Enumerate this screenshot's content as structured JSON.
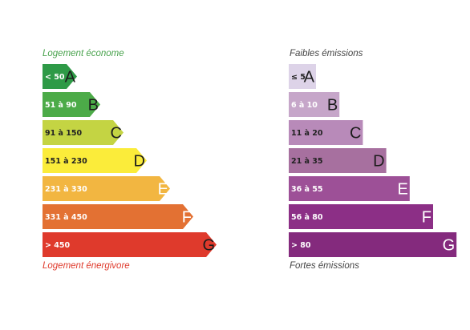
{
  "chart_data": [
    {
      "type": "bar",
      "top_label": "Logement économe",
      "bottom_label": "Logement énergivore",
      "shape": "arrow",
      "categories": [
        "A",
        "B",
        "C",
        "D",
        "E",
        "F",
        "G"
      ],
      "ranges": [
        "< 50",
        "51 à 90",
        "91 à 150",
        "151 à 230",
        "231 à 330",
        "331 à 450",
        "> 450"
      ],
      "values": [
        1,
        2,
        3,
        4,
        5,
        6,
        7
      ],
      "colors": [
        "#2e9a47",
        "#4cab48",
        "#c4d443",
        "#fbec3a",
        "#f2b641",
        "#e37133",
        "#df3a2c"
      ],
      "label_colors": [
        "#ffffff",
        "#ffffff",
        "#222222",
        "#222222",
        "#ffffff",
        "#ffffff",
        "#ffffff"
      ],
      "letter_colors": [
        "#1c1c1c",
        "#1c1c1c",
        "#1c1c1c",
        "#1c1c1c",
        "#ffffff",
        "#ffffff",
        "#1c1c1c"
      ],
      "top_label_color": "#48a24c",
      "bottom_label_color": "#df3a2c"
    },
    {
      "type": "bar",
      "top_label": "Faibles émissions",
      "bottom_label": "Fortes émissions",
      "shape": "rectangle",
      "categories": [
        "A",
        "B",
        "C",
        "D",
        "E",
        "F",
        "G"
      ],
      "ranges": [
        "≤ 5",
        "6 à 10",
        "11 à 20",
        "21 à 35",
        "36 à 55",
        "56 à 80",
        "> 80"
      ],
      "values": [
        1,
        2,
        3,
        4,
        5,
        6,
        7
      ],
      "colors": [
        "#ddd3e8",
        "#c6a6c9",
        "#b88ab9",
        "#a7709f",
        "#9d5097",
        "#8c2f86",
        "#842a7d"
      ],
      "label_colors": [
        "#222222",
        "#ffffff",
        "#222222",
        "#222222",
        "#ffffff",
        "#ffffff",
        "#ffffff"
      ],
      "letter_colors": [
        "#1c1c1c",
        "#1c1c1c",
        "#1c1c1c",
        "#1c1c1c",
        "#ffffff",
        "#ffffff",
        "#ffffff"
      ],
      "top_label_color": "#444444",
      "bottom_label_color": "#444444"
    }
  ]
}
